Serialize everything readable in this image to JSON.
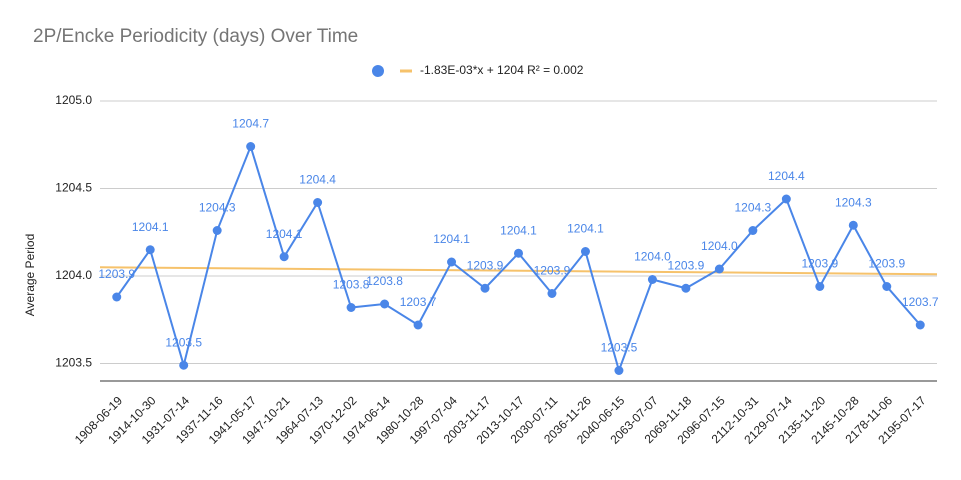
{
  "chart_data": {
    "type": "line",
    "title": "2P/Encke Periodicity (days) Over Time",
    "y_label": "Average Period",
    "categories": [
      "1908-06-19",
      "1914-10-30",
      "1931-07-14",
      "1937-11-16",
      "1941-05-17",
      "1947-10-21",
      "1964-07-13",
      "1970-12-02",
      "1974-06-14",
      "1980-10-28",
      "1997-07-04",
      "2003-11-17",
      "2013-10-17",
      "2030-07-11",
      "2036-11-26",
      "2040-06-15",
      "2063-07-07",
      "2069-11-18",
      "2096-07-15",
      "2112-10-31",
      "2129-07-14",
      "2135-11-20",
      "2145-10-28",
      "2178-11-06",
      "2195-07-17"
    ],
    "series": [
      {
        "color": "#4a86e8",
        "values": [
          1203.88,
          1204.15,
          1203.49,
          1204.26,
          1204.74,
          1204.11,
          1204.42,
          1203.82,
          1203.84,
          1203.72,
          1204.08,
          1203.93,
          1204.13,
          1203.9,
          1204.14,
          1203.46,
          1203.98,
          1203.93,
          1204.04,
          1204.26,
          1204.44,
          1203.94,
          1204.29,
          1203.94,
          1203.72
        ],
        "value_labels": [
          "1203.9",
          "1204.1",
          "1203.5",
          "1204.3",
          "1204.7",
          "1204.1",
          "1204.4",
          "1203.8",
          "1203.8",
          "1203.7",
          "1204.1",
          "1203.9",
          "1204.1",
          "1203.9",
          "1204.1",
          "1203.5",
          "1204.0",
          "1203.9",
          "1204.0",
          "1204.3",
          "1204.4",
          "1203.9",
          "1204.3",
          "1203.9",
          "1203.7"
        ]
      }
    ],
    "trendline": {
      "label": "-1.83E-03*x + 1204 R² = 0.002",
      "color": "#f6c26b",
      "values": [
        1204.05,
        1204.01
      ]
    },
    "ylim": [
      1203.4,
      1205.0
    ],
    "yticks": [
      {
        "value": 1203.5,
        "label": "1203.5"
      },
      {
        "value": 1204,
        "label": "1204.0"
      },
      {
        "value": 1204.5,
        "label": "1204.5"
      },
      {
        "value": 1205,
        "label": "1205.0"
      }
    ],
    "grid": true
  }
}
